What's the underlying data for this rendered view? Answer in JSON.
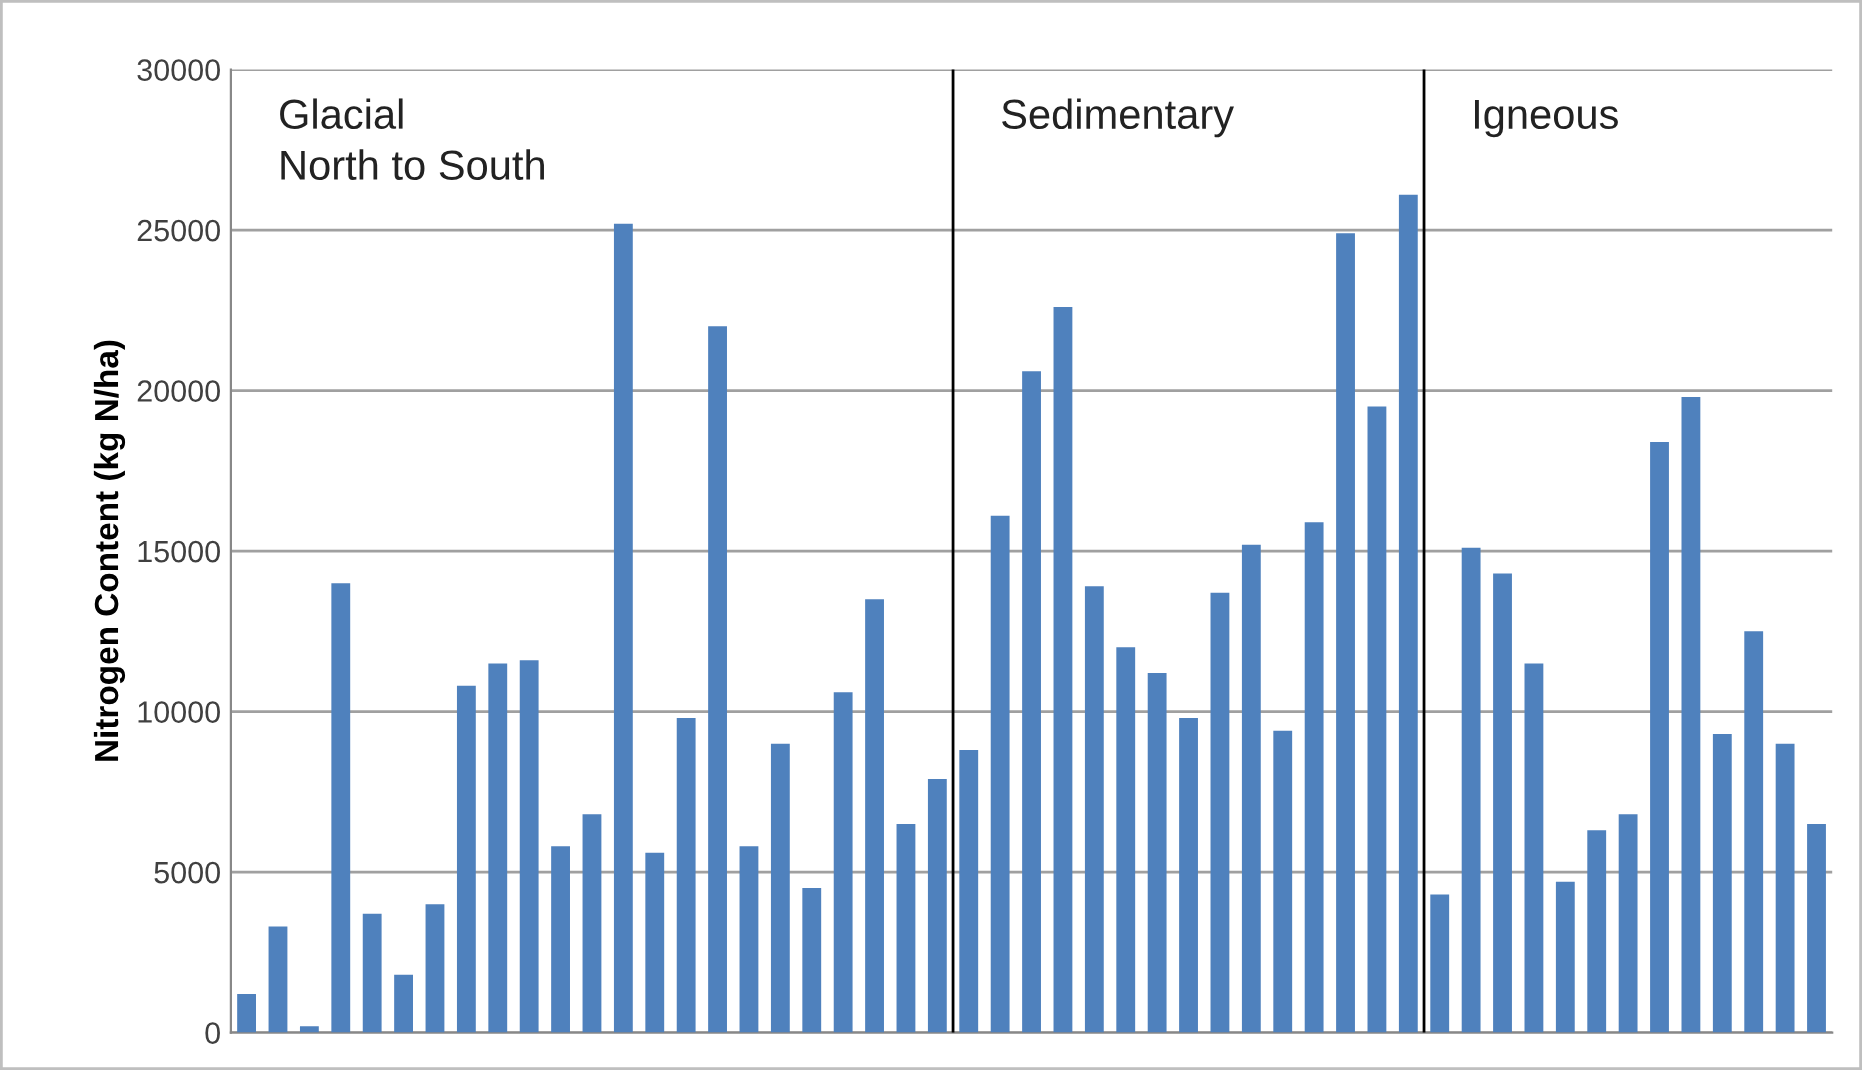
{
  "chart_data": {
    "type": "bar",
    "ylabel": "Nitrogen Content (kg N/ha)",
    "categories": [
      null,
      null,
      null,
      null,
      null,
      null,
      null,
      null,
      null,
      null,
      null,
      null,
      null,
      null,
      null,
      null,
      null,
      null,
      null,
      null,
      null,
      null,
      null,
      null,
      null,
      null,
      null,
      null,
      null,
      null,
      null,
      null,
      null,
      null,
      null,
      null,
      null,
      null,
      null,
      null,
      null,
      null,
      null,
      null,
      null,
      null,
      null,
      null,
      null,
      null,
      null
    ],
    "series": [
      {
        "color": "#4f81bd",
        "values": [
          1200,
          3300,
          200,
          14000,
          3700,
          1800,
          4000,
          10800,
          11500,
          11600,
          5800,
          6800,
          25200,
          5600,
          9800,
          22000,
          5800,
          9000,
          4500,
          10600,
          13500,
          6500,
          7900,
          null,
          null,
          null,
          null,
          null,
          null,
          null,
          null,
          null,
          null,
          null,
          null,
          null,
          null,
          null,
          null,
          null,
          null,
          null,
          null,
          null,
          null,
          null,
          null,
          null,
          null,
          null,
          null
        ]
      },
      {
        "color": "#4f81bd",
        "values": [
          null,
          null,
          null,
          null,
          null,
          null,
          null,
          null,
          null,
          null,
          null,
          null,
          null,
          null,
          null,
          null,
          null,
          null,
          null,
          null,
          null,
          null,
          null,
          8800,
          16100,
          20600,
          22600,
          13900,
          12000,
          11200,
          9800,
          13700,
          15200,
          9400,
          15900,
          24900,
          19500,
          26100,
          null,
          null,
          null,
          null,
          null,
          null,
          null,
          null,
          null,
          null,
          null,
          null,
          null
        ]
      },
      {
        "color": "#4f81bd",
        "values": [
          null,
          null,
          null,
          null,
          null,
          null,
          null,
          null,
          null,
          null,
          null,
          null,
          null,
          null,
          null,
          null,
          null,
          null,
          null,
          null,
          null,
          null,
          null,
          null,
          null,
          null,
          null,
          null,
          null,
          null,
          null,
          null,
          null,
          null,
          null,
          null,
          null,
          null,
          4300,
          15100,
          14300,
          11500,
          4700,
          6300,
          6800,
          18400,
          19800,
          9300,
          12500,
          9000,
          6500
        ]
      }
    ],
    "ylim": [
      0,
      30000
    ],
    "yticks": [
      0,
      5000,
      10000,
      15000,
      20000,
      25000,
      30000
    ],
    "grid": "y",
    "annotations": [
      "Glacial\nNorth to South",
      "Sedimentary",
      "Igneous"
    ]
  }
}
